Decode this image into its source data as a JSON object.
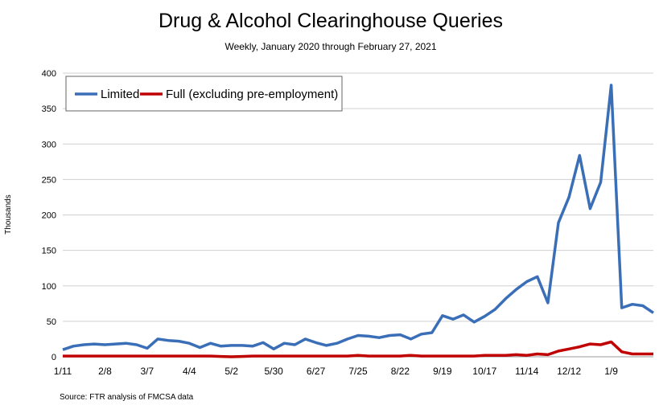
{
  "chart_data": {
    "type": "line",
    "title": "Drug & Alcohol Clearinghouse Queries",
    "subtitle": "Weekly, January 2020 through February 27, 2021",
    "ylabel": "Thousands",
    "xlabel": "",
    "source": "Source: FTR analysis of FMCSA data",
    "ylim": [
      0,
      400
    ],
    "yticks": [
      0,
      50,
      100,
      150,
      200,
      250,
      300,
      350,
      400
    ],
    "xtick_labels": [
      "1/11",
      "2/8",
      "3/7",
      "4/4",
      "5/2",
      "5/30",
      "6/27",
      "7/25",
      "8/22",
      "9/19",
      "10/17",
      "11/14",
      "12/12",
      "1/9"
    ],
    "xtick_every_n_weeks": 4,
    "grid": "horizontal",
    "legend_placement": "top-left",
    "series": [
      {
        "name": "Limited",
        "color": "#3a6fb8",
        "values": [
          10,
          15,
          17,
          18,
          17,
          18,
          19,
          17,
          12,
          25,
          23,
          22,
          19,
          13,
          19,
          15,
          16,
          16,
          15,
          20,
          11,
          19,
          17,
          25,
          20,
          16,
          19,
          25,
          30,
          29,
          27,
          30,
          31,
          25,
          32,
          34,
          58,
          53,
          59,
          49,
          57,
          67,
          82,
          95,
          106,
          113,
          76,
          189,
          225,
          284,
          209,
          246,
          383,
          69,
          74,
          72,
          62
        ]
      },
      {
        "name": "Full (excluding pre-employment)",
        "color": "#c00000",
        "values": [
          1,
          1,
          1,
          1,
          1,
          1,
          1,
          1,
          1,
          1,
          1,
          1,
          1,
          1,
          1,
          0.5,
          0,
          0.5,
          1,
          1,
          1,
          1,
          1,
          1,
          1,
          1,
          1,
          1,
          2,
          1,
          1,
          1,
          1,
          2,
          1,
          1,
          1,
          1,
          1,
          1,
          2,
          2,
          2,
          3,
          2,
          4,
          3,
          8,
          11,
          14,
          18,
          17,
          21,
          7,
          4,
          4,
          4
        ]
      }
    ]
  }
}
